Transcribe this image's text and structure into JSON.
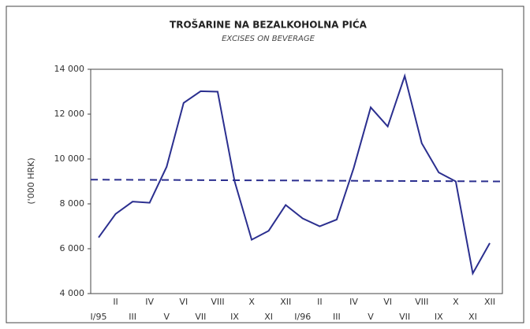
{
  "chart_data": {
    "type": "line",
    "title": "TROŠARINE NA BEZALKOHOLNA PIĆA",
    "subtitle": "EXCISES ON BEVERAGE",
    "y_label": "('000 HRK)",
    "categories": [
      "I/95",
      "II",
      "III",
      "IV",
      "V",
      "VI",
      "VII",
      "VIII",
      "IX",
      "X",
      "XI",
      "XII",
      "I/96",
      "II",
      "III",
      "IV",
      "V",
      "VI",
      "VII",
      "VIII",
      "IX",
      "X",
      "XI",
      "XII"
    ],
    "series": [
      {
        "color": "#2b2f8f",
        "values": [
          6500,
          7550,
          8100,
          8050,
          9650,
          12500,
          13020,
          13000,
          9000,
          6400,
          6800,
          7950,
          7350,
          7000,
          7300,
          9600,
          12300,
          11450,
          13700,
          10700,
          9400,
          9000,
          4900,
          6250
        ]
      }
    ],
    "trend_line": {
      "color": "#2b2f8f",
      "values": [
        9080,
        9000
      ]
    },
    "ylim": [
      4000,
      14000
    ],
    "yticks": [
      {
        "value": 4000,
        "label": "4 000"
      },
      {
        "value": 6000,
        "label": "6 000"
      },
      {
        "value": 8000,
        "label": "8 000"
      },
      {
        "value": 10000,
        "label": "10 000"
      },
      {
        "value": 12000,
        "label": "12 000"
      },
      {
        "value": 14000,
        "label": "14 000"
      }
    ]
  }
}
